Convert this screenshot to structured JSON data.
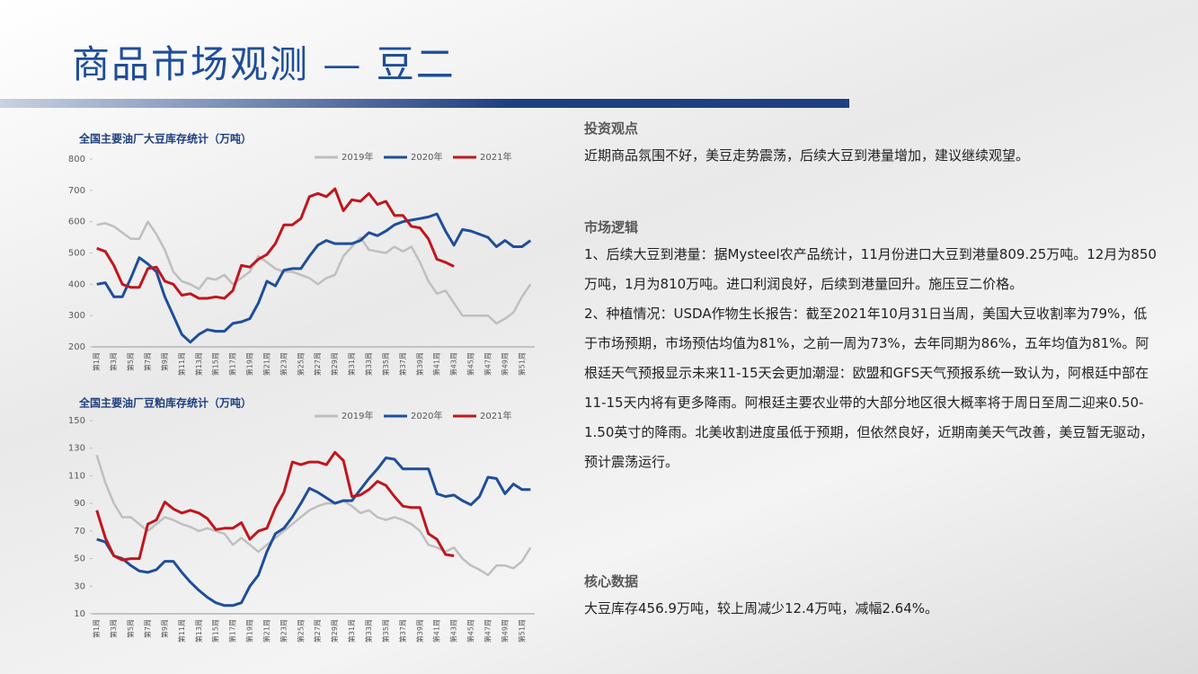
{
  "header": {
    "title": "商品市场观测 — 豆二"
  },
  "chart_data": [
    {
      "type": "line",
      "title": "全国主要油厂大豆库存统计（万吨）",
      "categories": [
        "第1周",
        null,
        "第3周",
        null,
        "第5周",
        null,
        "第7周",
        null,
        "第9周",
        null,
        "第11周",
        null,
        "第13周",
        null,
        "第15周",
        null,
        "第17周",
        null,
        "第19周",
        null,
        "第21周",
        null,
        "第23周",
        null,
        "第25周",
        null,
        "第27周",
        null,
        "第29周",
        null,
        "第31周",
        null,
        "第33周",
        null,
        "第35周",
        null,
        "第37周",
        null,
        "第39周",
        null,
        "第41周",
        null,
        "第43周",
        null,
        "第45周",
        null,
        "第47周",
        null,
        "第49周",
        null,
        "第51周",
        null
      ],
      "ylim": [
        200,
        800
      ],
      "yticks": [
        200,
        300,
        400,
        500,
        600,
        700,
        800
      ],
      "legend": "top-right",
      "series": [
        {
          "name": "2019年",
          "color": "#bfbfbf",
          "values": [
            590,
            595,
            585,
            565,
            545,
            545,
            600,
            560,
            510,
            440,
            410,
            400,
            385,
            420,
            415,
            430,
            400,
            420,
            440,
            490,
            470,
            450,
            440,
            440,
            430,
            420,
            400,
            420,
            430,
            490,
            520,
            550,
            510,
            505,
            500,
            520,
            505,
            520,
            470,
            410,
            370,
            380,
            340,
            300,
            300,
            300,
            300,
            275,
            290,
            310,
            360,
            400
          ]
        },
        {
          "name": "2020年",
          "color": "#1f4e99",
          "values": [
            400,
            405,
            360,
            360,
            420,
            485,
            465,
            440,
            360,
            300,
            240,
            215,
            240,
            255,
            250,
            250,
            275,
            280,
            290,
            340,
            410,
            395,
            445,
            450,
            450,
            490,
            525,
            540,
            530,
            530,
            530,
            540,
            565,
            555,
            570,
            590,
            600,
            605,
            610,
            615,
            625,
            570,
            525,
            575,
            570,
            560,
            550,
            520,
            540,
            520,
            520,
            540
          ]
        },
        {
          "name": "2021年",
          "color": "#c0161d",
          "values": [
            515,
            505,
            460,
            400,
            390,
            390,
            450,
            455,
            410,
            400,
            365,
            370,
            355,
            355,
            360,
            355,
            380,
            460,
            455,
            480,
            495,
            530,
            590,
            590,
            610,
            680,
            690,
            680,
            705,
            635,
            670,
            665,
            690,
            655,
            665,
            620,
            620,
            585,
            580,
            545,
            480,
            470,
            457,
            null,
            null,
            null,
            null,
            null,
            null,
            null,
            null,
            null
          ]
        }
      ]
    },
    {
      "type": "line",
      "title": "全国主要油厂豆粕库存统计（万吨）",
      "categories": [
        "第1周",
        null,
        "第3周",
        null,
        "第5周",
        null,
        "第7周",
        null,
        "第9周",
        null,
        "第11周",
        null,
        "第13周",
        null,
        "第15周",
        null,
        "第17周",
        null,
        "第19周",
        null,
        "第21周",
        null,
        "第23周",
        null,
        "第25周",
        null,
        "第27周",
        null,
        "第29周",
        null,
        "第31周",
        null,
        "第33周",
        null,
        "第35周",
        null,
        "第37周",
        null,
        "第39周",
        null,
        "第41周",
        null,
        "第43周",
        null,
        "第45周",
        null,
        "第47周",
        null,
        "第49周",
        null,
        "第51周",
        null
      ],
      "ylim": [
        10,
        150
      ],
      "yticks": [
        10,
        30,
        50,
        70,
        90,
        110,
        130,
        150
      ],
      "legend": "top-right",
      "series": [
        {
          "name": "2019年",
          "color": "#bfbfbf",
          "values": [
            125,
            105,
            90,
            80,
            80,
            75,
            70,
            75,
            80,
            78,
            75,
            73,
            70,
            72,
            70,
            68,
            60,
            65,
            60,
            55,
            60,
            65,
            70,
            75,
            80,
            85,
            88,
            90,
            90,
            92,
            88,
            83,
            85,
            80,
            78,
            80,
            78,
            75,
            70,
            60,
            58,
            55,
            58,
            50,
            45,
            42,
            38,
            45,
            45,
            43,
            48,
            58
          ]
        },
        {
          "name": "2020年",
          "color": "#1f4e99",
          "values": [
            64,
            62,
            52,
            50,
            45,
            41,
            40,
            42,
            48,
            48,
            40,
            33,
            27,
            22,
            18,
            16,
            16,
            18,
            30,
            38,
            55,
            68,
            72,
            80,
            90,
            101,
            98,
            94,
            90,
            92,
            92,
            100,
            108,
            115,
            123,
            122,
            115,
            115,
            115,
            115,
            97,
            95,
            96,
            92,
            89,
            95,
            109,
            108,
            97,
            104,
            100,
            100
          ]
        },
        {
          "name": "2021年",
          "color": "#c0161d",
          "values": [
            85,
            65,
            52,
            49,
            50,
            50,
            75,
            78,
            91,
            86,
            83,
            85,
            83,
            79,
            71,
            72,
            72,
            76,
            64,
            70,
            72,
            87,
            98,
            120,
            118,
            120,
            120,
            118,
            127,
            121,
            95,
            96,
            100,
            106,
            103,
            95,
            88,
            87,
            87,
            68,
            64,
            53,
            52,
            null,
            null,
            null,
            null,
            null,
            null,
            null,
            null,
            null
          ]
        }
      ]
    }
  ],
  "sections": [
    {
      "heading": "投资观点",
      "paragraphs": [
        "近期商品氛围不好，美豆走势震荡，后续大豆到港量增加，建议继续观望。"
      ]
    },
    {
      "heading": "市场逻辑",
      "paragraphs": [
        "1、后续大豆到港量：据Mysteel农产品统计，11月份进口大豆到港量809.25万吨。12月为850万吨，1月为810万吨。进口利润良好，后续到港量回升。施压豆二价格。",
        "2、种植情况：USDA作物生长报告：截至2021年10月31日当周，美国大豆收割率为79%，低于市场预期，市场预估均值为81%，之前一周为73%，去年同期为86%，五年均值为81%。阿根廷天气预报显示未来11-15天会更加潮湿：欧盟和GFS天气预报系统一致认为，阿根廷中部在11-15天内将有更多降雨。阿根廷主要农业带的大部分地区很大概率将于周日至周二迎来0.50-1.50英寸的降雨。北美收割进度虽低于预期，但依然良好，近期南美天气改善，美豆暂无驱动，预计震荡运行。"
      ]
    },
    {
      "heading": "核心数据",
      "paragraphs": [
        "大豆库存456.9万吨，较上周减少12.4万吨，减幅2.64%。"
      ]
    }
  ]
}
